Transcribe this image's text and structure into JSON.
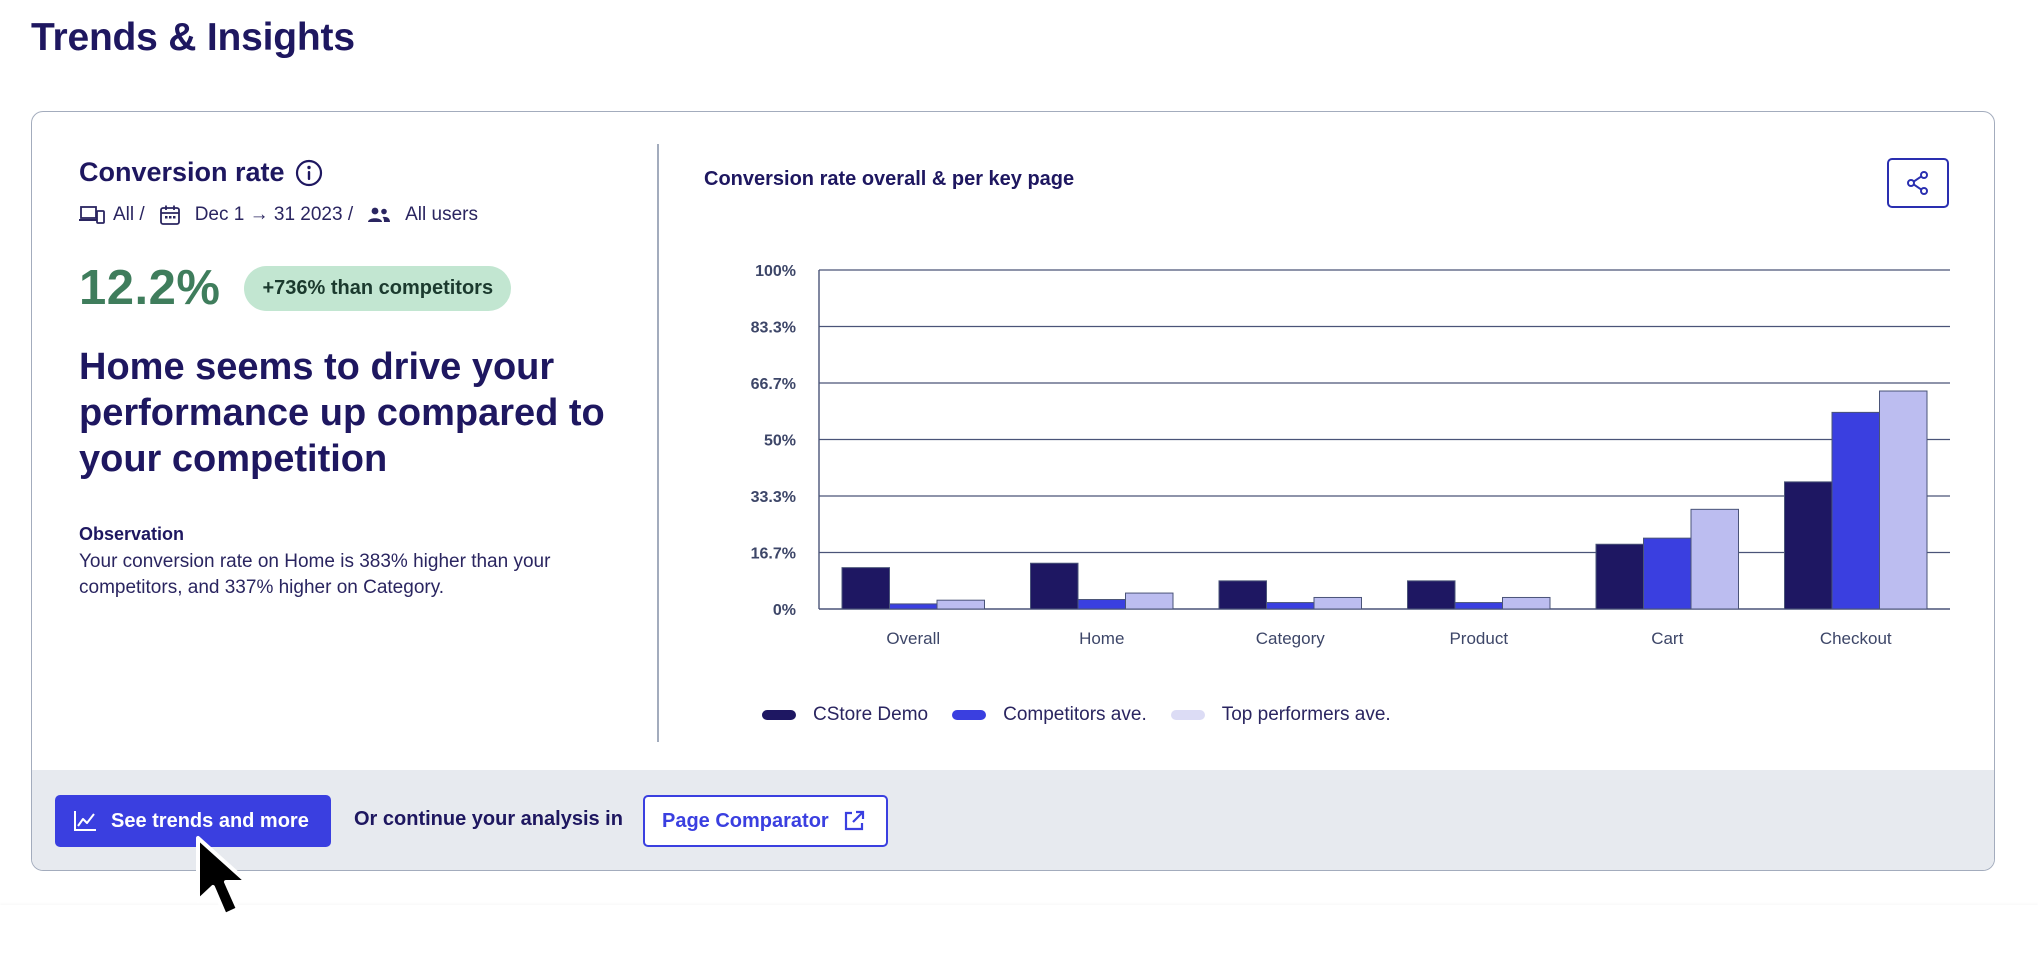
{
  "page": {
    "title": "Trends & Insights"
  },
  "metric": {
    "title": "Conversion rate",
    "filters": {
      "device": "All /",
      "date": "Dec 1 → 31 2023 /",
      "segment": "All users"
    },
    "value": "12.2%",
    "badge": "+736% than competitors",
    "headline": "Home seems to drive your performance up compared to your competition",
    "observation_title": "Observation",
    "observation_text": "Your conversion rate on Home is 383% higher than your competitors, and 337% higher on Category."
  },
  "chart_data": {
    "type": "bar",
    "title": "Conversion rate overall & per key page",
    "categories": [
      "Overall",
      "Home",
      "Category",
      "Product",
      "Cart",
      "Checkout"
    ],
    "series": [
      {
        "name": "CStore Demo",
        "color": "#1e1762",
        "values": [
          12.2,
          13.5,
          8.3,
          8.3,
          19.1,
          37.5
        ]
      },
      {
        "name": "Competitors ave.",
        "color": "#3a3fe0",
        "values": [
          1.5,
          2.8,
          1.9,
          1.9,
          20.9,
          58.0
        ]
      },
      {
        "name": "Top performers ave.",
        "color": "#bcbdf0",
        "values": [
          2.6,
          4.7,
          3.4,
          3.4,
          29.4,
          64.3
        ]
      }
    ],
    "yticks": [
      "100%",
      "83.3%",
      "66.7%",
      "50%",
      "33.3%",
      "16.7%",
      "0%"
    ],
    "ylim": [
      0,
      100
    ],
    "xlabel": "",
    "ylabel": "",
    "grid": true,
    "legend_position": "bottom-left"
  },
  "footer": {
    "primary_button": "See trends and more",
    "continue_text": "Or continue your analysis in",
    "comparator_button": "Page Comparator"
  },
  "colors": {
    "accent": "#3a3fe0",
    "navy": "#1e1760",
    "success": "#3f7d5c",
    "badge_bg": "#c2e6d1"
  }
}
